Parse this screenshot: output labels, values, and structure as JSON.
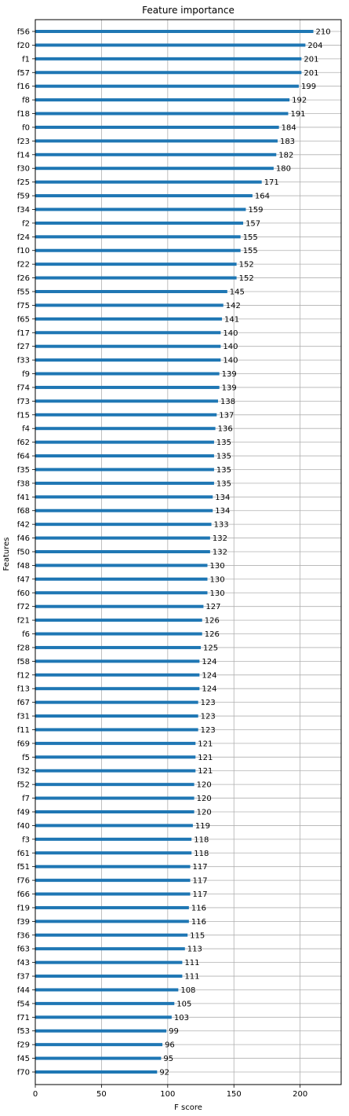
{
  "chart_data": {
    "type": "bar",
    "orientation": "horizontal",
    "title": "Feature importance",
    "xlabel": "F score",
    "ylabel": "Features",
    "xlim": [
      0,
      231
    ],
    "xticks": [
      0,
      50,
      100,
      150,
      200
    ],
    "grid": true,
    "bar_color": "#1f77b4",
    "categories": [
      "f56",
      "f20",
      "f1",
      "f57",
      "f16",
      "f8",
      "f18",
      "f0",
      "f23",
      "f14",
      "f30",
      "f25",
      "f59",
      "f34",
      "f2",
      "f24",
      "f10",
      "f22",
      "f26",
      "f55",
      "f75",
      "f65",
      "f17",
      "f27",
      "f33",
      "f9",
      "f74",
      "f73",
      "f15",
      "f4",
      "f62",
      "f64",
      "f35",
      "f38",
      "f41",
      "f68",
      "f42",
      "f46",
      "f50",
      "f48",
      "f47",
      "f60",
      "f72",
      "f21",
      "f6",
      "f28",
      "f58",
      "f12",
      "f13",
      "f67",
      "f31",
      "f11",
      "f69",
      "f5",
      "f32",
      "f52",
      "f7",
      "f49",
      "f40",
      "f3",
      "f61",
      "f51",
      "f76",
      "f66",
      "f19",
      "f39",
      "f36",
      "f63",
      "f43",
      "f37",
      "f44",
      "f54",
      "f71",
      "f53",
      "f29",
      "f45",
      "f70"
    ],
    "values": [
      210,
      204,
      201,
      201,
      199,
      192,
      191,
      184,
      183,
      182,
      180,
      171,
      164,
      159,
      157,
      155,
      155,
      152,
      152,
      145,
      142,
      141,
      140,
      140,
      140,
      139,
      139,
      138,
      137,
      136,
      135,
      135,
      135,
      135,
      134,
      134,
      133,
      132,
      132,
      130,
      130,
      130,
      127,
      126,
      126,
      125,
      124,
      124,
      124,
      123,
      123,
      123,
      121,
      121,
      121,
      120,
      120,
      120,
      119,
      118,
      118,
      117,
      117,
      117,
      116,
      116,
      115,
      113,
      111,
      111,
      108,
      105,
      103,
      99,
      96,
      95,
      92
    ]
  }
}
